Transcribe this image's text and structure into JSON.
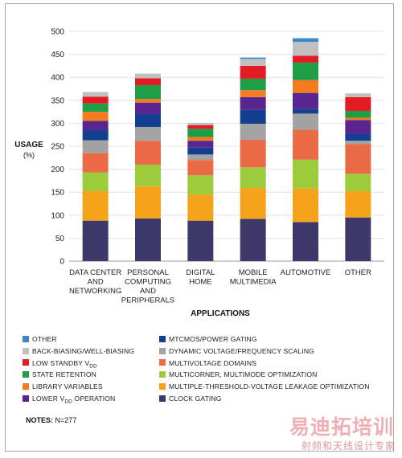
{
  "chart_data": {
    "type": "bar",
    "stacked": true,
    "ylabel": "USAGE",
    "ylabel_unit": "(%)",
    "xlabel": "APPLICATIONS",
    "ylim": [
      0,
      500
    ],
    "yticks": [
      0,
      50,
      100,
      150,
      200,
      250,
      300,
      350,
      400,
      450,
      500
    ],
    "grid": true,
    "categories": [
      [
        "DATA CENTER",
        "AND",
        "NETWORKING"
      ],
      [
        "PERSONAL",
        "COMPUTING",
        "AND",
        "PERIPHERALS"
      ],
      [
        "DIGITAL",
        "HOME"
      ],
      [
        "MOBILE",
        "MULTIMEDIA"
      ],
      [
        "AUTOMOTIVE"
      ],
      [
        "OTHER"
      ]
    ],
    "series": [
      {
        "name": "CLOCK GATING",
        "color": "#3d3a6b",
        "values": [
          88,
          93,
          88,
          92,
          85,
          95
        ]
      },
      {
        "name": "MULTIPLE-THRESHOLD-VOLTAGE LEAKAGE OPTIMIZATION",
        "color": "#f5a31a",
        "values": [
          65,
          70,
          57,
          67,
          73,
          58
        ]
      },
      {
        "name": "MULTICORNER, MULTIMODE OPTIMIZATION",
        "color": "#9ccb3b",
        "values": [
          40,
          47,
          42,
          45,
          63,
          37
        ]
      },
      {
        "name": "MULTIVOLTAGE DOMAINS",
        "color": "#ea6b45",
        "values": [
          42,
          52,
          33,
          60,
          65,
          65
        ]
      },
      {
        "name": "DYNAMIC VOLTAGE/FREQUENCY SCALING",
        "color": "#a3a3a3",
        "values": [
          28,
          30,
          12,
          35,
          35,
          7
        ]
      },
      {
        "name": "MTCMOS/POWER GATING",
        "color": "#123f8f",
        "values": [
          22,
          28,
          15,
          30,
          10,
          15
        ]
      },
      {
        "name": "LOWER VDD OPERATION",
        "color": "#5b2590",
        "values": [
          20,
          25,
          15,
          28,
          35,
          30
        ]
      },
      {
        "name": "LIBRARY VARIABLES",
        "color": "#f47b20",
        "values": [
          20,
          8,
          8,
          15,
          28,
          5
        ]
      },
      {
        "name": "STATE RETENTION",
        "color": "#1f9e48",
        "values": [
          18,
          30,
          18,
          25,
          38,
          15
        ]
      },
      {
        "name": "LOW STANDBY VDD",
        "color": "#e31b23",
        "values": [
          15,
          15,
          8,
          28,
          15,
          30
        ]
      },
      {
        "name": "BACK-BIASING/WELL-BIASING",
        "color": "#c0c0c0",
        "values": [
          10,
          10,
          5,
          15,
          30,
          8
        ]
      },
      {
        "name": "OTHER",
        "color": "#3b87c7",
        "values": [
          0,
          0,
          0,
          3,
          8,
          0
        ]
      }
    ]
  },
  "legend": {
    "left": [
      {
        "pre": "OTHER",
        "sub": "",
        "post": "",
        "color": "#3b87c7"
      },
      {
        "pre": "BACK-BIASING/WELL-BIASING",
        "sub": "",
        "post": "",
        "color": "#c0c0c0"
      },
      {
        "pre": "LOW STANDBY V",
        "sub": "DD",
        "post": "",
        "color": "#e31b23"
      },
      {
        "pre": "STATE RETENTION",
        "sub": "",
        "post": "",
        "color": "#1f9e48"
      },
      {
        "pre": "LIBRARY VARIABLES",
        "sub": "",
        "post": "",
        "color": "#f47b20"
      },
      {
        "pre": "LOWER V",
        "sub": "DD",
        "post": " OPERATION",
        "color": "#5b2590"
      }
    ],
    "right": [
      {
        "pre": "MTCMOS/POWER GATING",
        "sub": "",
        "post": "",
        "color": "#123f8f"
      },
      {
        "pre": "DYNAMIC VOLTAGE/FREQUENCY SCALING",
        "sub": "",
        "post": "",
        "color": "#a3a3a3"
      },
      {
        "pre": "MULTIVOLTAGE DOMAINS",
        "sub": "",
        "post": "",
        "color": "#ea6b45"
      },
      {
        "pre": "MULTICORNER, MULTIMODE OPTIMIZATION",
        "sub": "",
        "post": "",
        "color": "#9ccb3b"
      },
      {
        "pre": "MULTIPLE-THRESHOLD-VOLTAGE LEAKAGE OPTIMIZATION",
        "sub": "",
        "post": "",
        "color": "#f5a31a"
      },
      {
        "pre": "CLOCK GATING",
        "sub": "",
        "post": "",
        "color": "#3d3a6b"
      }
    ]
  },
  "notes": {
    "label": "NOTES:",
    "text": " N=277"
  },
  "watermark": {
    "big": "易迪拓培训",
    "small": "射频和天线设计专家"
  }
}
